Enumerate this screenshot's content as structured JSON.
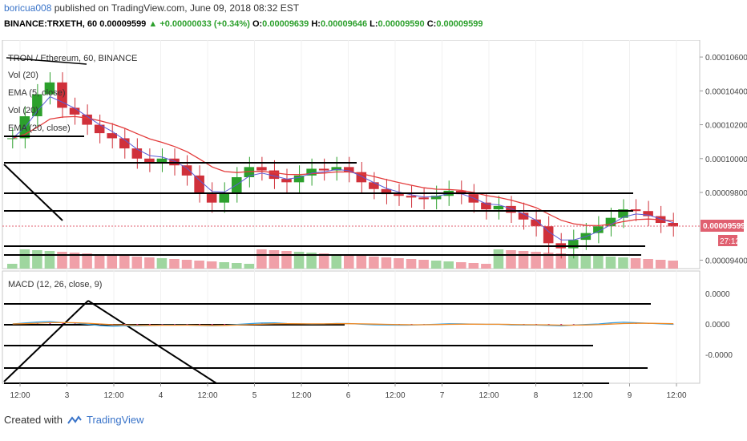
{
  "header": {
    "author": "boricua008",
    "published": "published on TradingView.com, June 09, 2018 08:32 EST",
    "symbol": "BINANCE:TRXETH, 60",
    "last": "0.00009599",
    "change": "+0.00000033 (+0.34%)",
    "o_label": "O:",
    "o": "0.00009639",
    "h_label": "H:",
    "h": "0.00009646",
    "l_label": "L:",
    "l": "0.00009590",
    "c_label": "C:",
    "c": "0.00009599"
  },
  "legend": {
    "title": "TRON / Ethereum, 60, BINANCE",
    "items": [
      "Vol (20)",
      "EMA (5, close)",
      "Vol (20)",
      "EMA (20, close)"
    ]
  },
  "macd_label": "MACD (12, 26, close, 9)",
  "footer": {
    "created_with": "Created with",
    "brand": "TradingView"
  },
  "colors": {
    "up": "#2ca02c",
    "down": "#d0303a",
    "ema_fast": "#5b5bd6",
    "ema_slow": "#e33b3b",
    "macd": "#3aa0e0",
    "signal": "#f08a24",
    "hist": "#c0208a",
    "badge": "#e06070"
  },
  "chart_data": {
    "type": "line",
    "price_axis": {
      "ticks": [
        "0.00010600",
        "0.00010400",
        "0.00010200",
        "0.00010000",
        "0.00009800",
        "0.00009400"
      ],
      "ylim": [
        9.35e-05,
        0.000107
      ]
    },
    "current_price_label": "0.00009599",
    "countdown_label": "27:12",
    "macd_axis": {
      "ticks": [
        "0.0000",
        "0.0000",
        "-0.0000"
      ]
    },
    "x_ticks": [
      "12:00",
      "3",
      "12:00",
      "4",
      "12:00",
      "5",
      "12:00",
      "6",
      "12:00",
      "7",
      "12:00",
      "8",
      "12:00",
      "9",
      "12:00"
    ],
    "price_series": [
      {
        "name": "close",
        "values": [
          0.0001012,
          0.0001025,
          0.0001038,
          0.0001045,
          0.000103,
          0.0001026,
          0.000102,
          0.0001015,
          0.0001012,
          0.0001006,
          0.0001,
          9.98e-05,
          0.0001,
          9.96e-05,
          9.9e-05,
          9.8e-05,
          9.74e-05,
          9.8e-05,
          9.89e-05,
          9.95e-05,
          9.93e-05,
          9.88e-05,
          9.86e-05,
          9.9e-05,
          9.94e-05,
          9.93e-05,
          9.95e-05,
          9.92e-05,
          9.86e-05,
          9.82e-05,
          9.79e-05,
          9.78e-05,
          9.77e-05,
          9.76e-05,
          9.78e-05,
          9.81e-05,
          9.79e-05,
          9.74e-05,
          9.7e-05,
          9.72e-05,
          9.68e-05,
          9.64e-05,
          9.6e-05,
          9.5e-05,
          9.47e-05,
          9.52e-05,
          9.56e-05,
          9.6e-05,
          9.65e-05,
          9.7e-05,
          9.69e-05,
          9.66e-05,
          9.62e-05,
          9.599e-05
        ]
      }
    ]
  }
}
